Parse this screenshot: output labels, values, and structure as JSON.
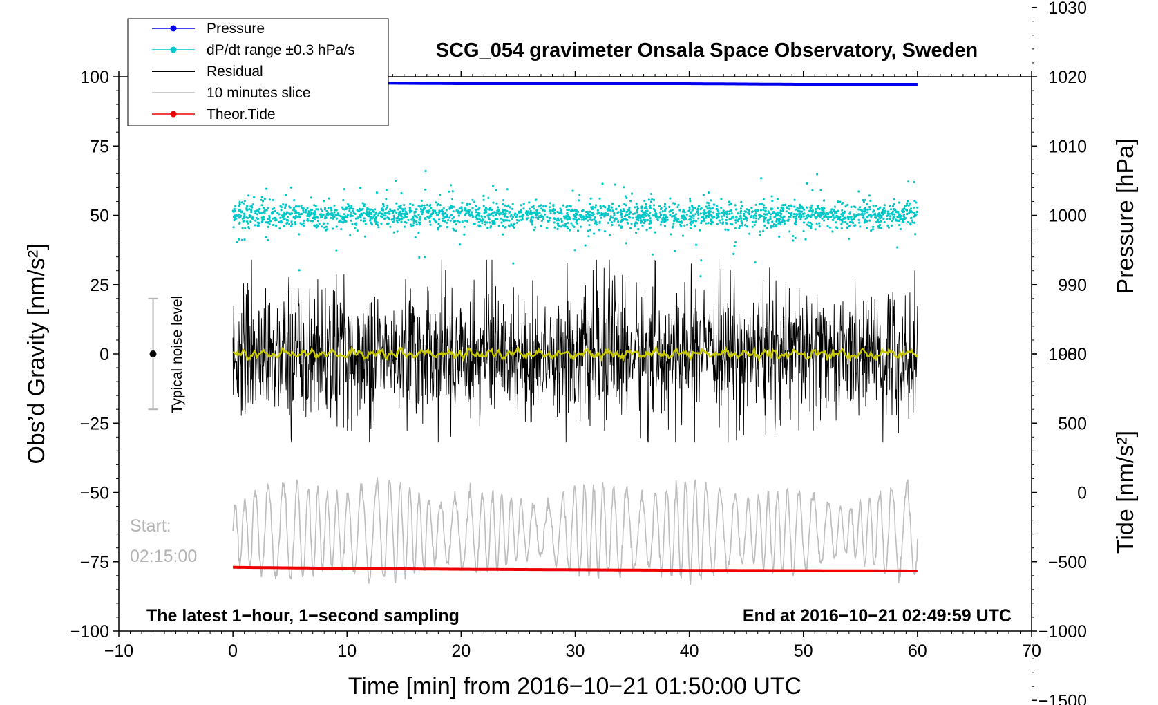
{
  "chart_data": {
    "type": "line",
    "title": "SCG_054 gravimeter Onsala Space Observatory, Sweden",
    "xlabel": "Time [min] from 2016−10−21 01:50:00 UTC",
    "ylabel_left": "Obs’d Gravity [nm/s²]",
    "ylabel_pressure": "Pressure [hPa]",
    "ylabel_tide": "Tide [nm/s²]",
    "xlim": [
      -10,
      70
    ],
    "ylim": [
      -100,
      100
    ],
    "pressure_lim": [
      970,
      1030
    ],
    "tide_lim": [
      -1500,
      1500
    ],
    "x_ticks": [
      "−10",
      "0",
      "10",
      "20",
      "30",
      "40",
      "50",
      "60",
      "70"
    ],
    "x_tick_values": [
      -10,
      0,
      10,
      20,
      30,
      40,
      50,
      60,
      70
    ],
    "y_ticks": [
      "100",
      "75",
      "50",
      "25",
      "0",
      "−25",
      "−50",
      "−75",
      "−100"
    ],
    "y_tick_values": [
      100,
      75,
      50,
      25,
      0,
      -25,
      -50,
      -75,
      -100
    ],
    "pressure_ticks": [
      "1030",
      "1020",
      "1010",
      "1000",
      "990",
      "980"
    ],
    "pressure_tick_values": [
      1030,
      1020,
      1010,
      1000,
      990,
      980
    ],
    "tide_ticks": [
      "1000",
      "500",
      "0",
      "−500",
      "−1000",
      "−1500"
    ],
    "tide_tick_values": [
      1000,
      500,
      0,
      -500,
      -1000,
      -1500
    ],
    "legend": [
      {
        "label": "Pressure",
        "color": "#0000ee",
        "marker": true
      },
      {
        "label": "dP/dt range ±0.3 hPa/s",
        "color": "#00c8c8",
        "marker": true
      },
      {
        "label": "Residual",
        "color": "#000000",
        "marker": false
      },
      {
        "label": "10 minutes slice",
        "color": "#bdbdbd",
        "marker": false
      },
      {
        "label": "Theor.Tide",
        "color": "#ee0000",
        "marker": true
      }
    ],
    "series": [
      {
        "name": "Pressure",
        "axis": "pressure",
        "x": [
          0,
          10,
          20,
          30,
          40,
          50,
          60
        ],
        "values": [
          1019.2,
          1019.1,
          1019.0,
          1019.0,
          1019.0,
          1018.9,
          1018.9
        ]
      },
      {
        "name": "dP/dt range ±0.3 hPa/s",
        "axis": "gravity",
        "center": 50,
        "spread": 3,
        "x_range": [
          0,
          60
        ]
      },
      {
        "name": "Residual",
        "axis": "gravity",
        "center": 0,
        "range": [
          -32,
          34
        ],
        "x_range": [
          0,
          60
        ]
      },
      {
        "name": "Residual smoothed",
        "axis": "gravity",
        "color": "#c8c800",
        "center": 0
      },
      {
        "name": "10 minutes slice",
        "axis": "gravity",
        "center": -64,
        "range": [
          -90,
          -43
        ],
        "x_range": [
          0,
          60
        ]
      },
      {
        "name": "Theor.Tide",
        "axis": "gravity",
        "x": [
          0,
          10,
          20,
          30,
          40,
          50,
          60
        ],
        "values": [
          -77.0,
          -77.4,
          -77.7,
          -77.9,
          -78.1,
          -78.2,
          -78.3
        ]
      }
    ],
    "noise_bar": {
      "x": -7,
      "center": 0,
      "low": -20,
      "high": 20,
      "label": "Typical noise level"
    },
    "start_label": "Start:",
    "start_time": "02:15:00",
    "note_left": "The latest 1−hour, 1−second sampling",
    "note_right": "End at 2016−10−21 02:49:59 UTC"
  }
}
